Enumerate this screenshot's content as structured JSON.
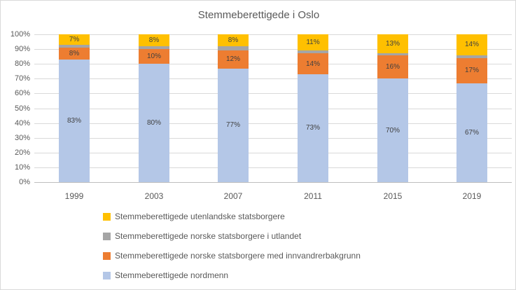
{
  "chart_data": {
    "type": "bar",
    "stacked": true,
    "title": "Stemmeberettigede i Oslo",
    "categories": [
      "1999",
      "2003",
      "2007",
      "2011",
      "2015",
      "2019"
    ],
    "series": [
      {
        "name": "Stemmeberettigede nordmenn",
        "color": "#b4c7e7",
        "values": [
          83,
          80,
          77,
          73,
          70,
          67
        ],
        "data_labels": [
          "83%",
          "80%",
          "77%",
          "73%",
          "70%",
          "67%"
        ]
      },
      {
        "name": "Stemmeberettigede norske statsborgere med innvandrerbakgrunn",
        "color": "#ed7d31",
        "values": [
          8,
          10,
          12,
          14,
          16,
          17
        ],
        "data_labels": [
          "8%",
          "10%",
          "12%",
          "14%",
          "16%",
          "17%"
        ]
      },
      {
        "name": "Stemmeberettigede norske statsborgere i utlandet",
        "color": "#a5a5a5",
        "values": [
          2,
          2,
          3,
          2,
          1,
          2
        ],
        "data_labels": [
          "",
          "",
          "",
          "",
          "",
          ""
        ]
      },
      {
        "name": "Stemmeberettigede utenlandske statsborgere",
        "color": "#ffc000",
        "values": [
          7,
          8,
          8,
          11,
          13,
          14
        ],
        "data_labels": [
          "7%",
          "8%",
          "8%",
          "11%",
          "13%",
          "14%"
        ]
      }
    ],
    "y_axis": {
      "min": 0,
      "max": 100,
      "tick_step": 10,
      "tick_labels": [
        "0%",
        "10%",
        "20%",
        "30%",
        "40%",
        "50%",
        "60%",
        "70%",
        "80%",
        "90%",
        "100%"
      ]
    },
    "x_axis": {
      "tick_labels": [
        "1999",
        "2003",
        "2007",
        "2011",
        "2015",
        "2019"
      ]
    },
    "legend": {
      "position": "bottom-left",
      "entries": [
        {
          "label": "Stemmeberettigede utenlandske statsborgere",
          "color": "#ffc000"
        },
        {
          "label": "Stemmeberettigede norske statsborgere i utlandet",
          "color": "#a5a5a5"
        },
        {
          "label": "Stemmeberettigede norske statsborgere med innvandrerbakgrunn",
          "color": "#ed7d31"
        },
        {
          "label": "Stemmeberettigede nordmenn",
          "color": "#b4c7e7"
        }
      ]
    },
    "grid": true,
    "gridline_color": "#d9d9d9",
    "axis_line_color": "#bfbfbf",
    "text_color": "#595959",
    "data_label_color": "#404040"
  }
}
